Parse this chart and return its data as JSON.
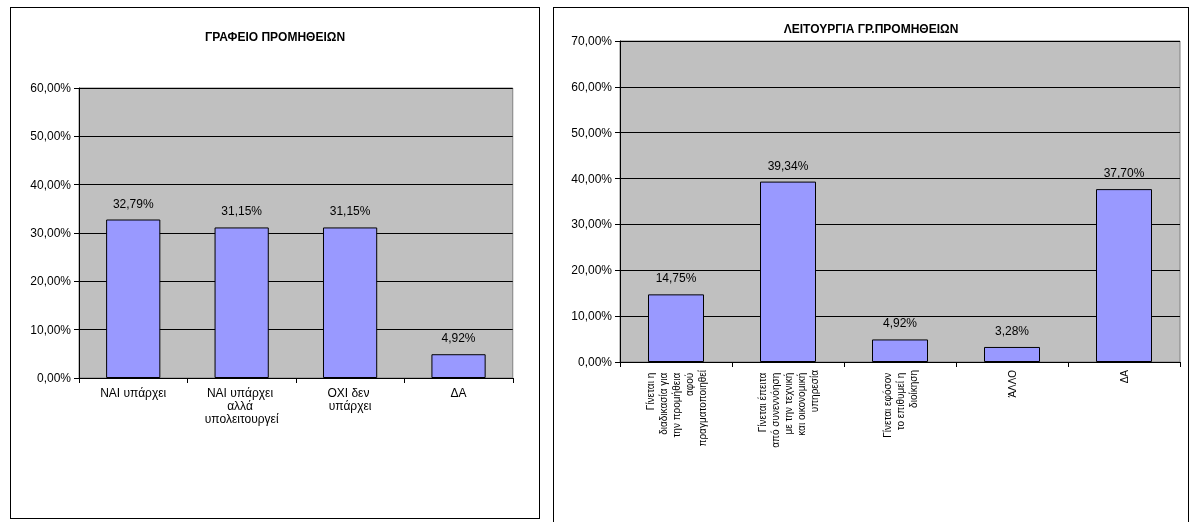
{
  "chart_data": [
    {
      "type": "bar",
      "title": "ΓΡΑΦΕΙΟ ΠΡΟΜΗΘΕΙΩΝ",
      "categories": [
        "ΝΑΙ υπάρχει",
        "ΝΑΙ υπάρχει αλλά υπολειτουργεί",
        "ΟΧΙ δεν υπάρχει",
        "ΔΑ"
      ],
      "values": [
        32.79,
        31.15,
        31.15,
        4.92
      ],
      "value_labels": [
        "32,79%",
        "31,15%",
        "31,15%",
        "4,92%"
      ],
      "color": "#9999ff",
      "ylim": [
        0,
        60
      ],
      "yticks": [
        {
          "value": 0,
          "label": "0,00%"
        },
        {
          "value": 10,
          "label": "10,00%"
        },
        {
          "value": 20,
          "label": "20,00%"
        },
        {
          "value": 30,
          "label": "30,00%"
        },
        {
          "value": 40,
          "label": "40,00%"
        },
        {
          "value": 50,
          "label": "50,00%"
        },
        {
          "value": 60,
          "label": "60,00%"
        }
      ],
      "grid": "y"
    },
    {
      "type": "bar",
      "title": "ΛΕΙΤΟΥΡΓΙΑ ΓΡ.ΠΡΟΜΗΘΕΙΩΝ",
      "categories": [
        "Γίνεται η διαδικασία για την προμήθεια αφού πραγματοποιηθεί",
        "Γίνεται έπειτα από συνεννόηση με την τεχνική και οικονομική υπηρεσία",
        "Γίνεται εφόσον το επιθυμεί η διοίκηση",
        "ΆΛΛΟ",
        "ΔΑ"
      ],
      "values": [
        14.75,
        39.34,
        4.92,
        3.28,
        37.7
      ],
      "value_labels": [
        "14,75%",
        "39,34%",
        "4,92%",
        "3,28%",
        "37,70%"
      ],
      "color": "#9999ff",
      "ylim": [
        0,
        70
      ],
      "yticks": [
        {
          "value": 0,
          "label": "0,00%"
        },
        {
          "value": 10,
          "label": "10,00%"
        },
        {
          "value": 20,
          "label": "20,00%"
        },
        {
          "value": 30,
          "label": "30,00%"
        },
        {
          "value": 40,
          "label": "40,00%"
        },
        {
          "value": 50,
          "label": "50,00%"
        },
        {
          "value": 60,
          "label": "60,00%"
        },
        {
          "value": 70,
          "label": "70,00%"
        }
      ],
      "grid": "y"
    }
  ]
}
